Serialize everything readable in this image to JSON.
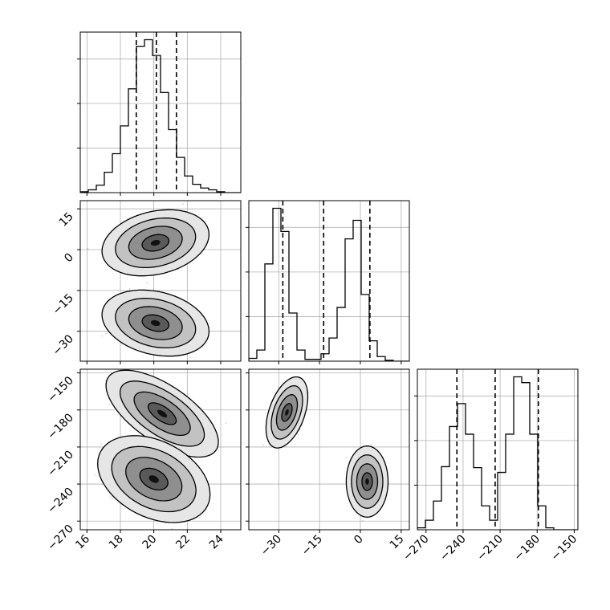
{
  "chart_data": {
    "type": "corner",
    "parameters": [
      {
        "range": [
          15.6,
          25.2
        ],
        "ticks": [
          16,
          18,
          20,
          22,
          24
        ],
        "tick_labels": [
          "16",
          "18",
          "20",
          "22",
          "24"
        ]
      },
      {
        "range": [
          -41,
          18
        ],
        "ticks": [
          -30,
          -15,
          0,
          15
        ],
        "tick_labels": [
          "−30",
          "−15",
          "0",
          "15"
        ]
      },
      {
        "range": [
          -277,
          -147
        ],
        "ticks": [
          -270,
          -240,
          -210,
          -180,
          -150
        ],
        "tick_labels": [
          "−270",
          "−240",
          "−210",
          "−180",
          "−150"
        ]
      }
    ],
    "quantiles": [
      [
        18.95,
        20.15,
        21.35
      ],
      [
        -28.5,
        -13.5,
        3.5
      ],
      [
        -245,
        -214,
        -179
      ]
    ],
    "histograms": [
      {
        "edges_start": 15.6,
        "bin_width": 0.48,
        "counts": [
          1,
          3,
          8,
          22,
          42,
          72,
          112,
          158,
          165,
          148,
          108,
          68,
          38,
          18,
          9,
          5,
          3,
          1,
          0,
          0
        ]
      },
      {
        "edges_start": -41,
        "bin_width": 2.95,
        "counts": [
          3,
          12,
          105,
          165,
          140,
          52,
          12,
          2,
          2,
          8,
          25,
          58,
          132,
          152,
          72,
          22,
          5,
          1,
          0,
          0
        ]
      },
      {
        "edges_start": -277,
        "bin_width": 6.5,
        "counts": [
          2,
          10,
          30,
          66,
          108,
          132,
          100,
          65,
          25,
          10,
          60,
          100,
          160,
          154,
          100,
          25,
          2,
          0,
          0,
          0
        ]
      }
    ],
    "clusters_2d": [
      {
        "pair": [
          0,
          1
        ],
        "blobs": [
          {
            "cx": 20.1,
            "cy": 2.5,
            "sx": 1.0,
            "sy": 3.8,
            "rho": 0.25
          },
          {
            "cx": 20.1,
            "cy": -27.0,
            "sx": 1.0,
            "sy": 3.8,
            "rho": -0.25
          }
        ]
      },
      {
        "pair": [
          0,
          2
        ],
        "blobs": [
          {
            "cx": 20.5,
            "cy": -183,
            "sx": 1.05,
            "sy": 11,
            "rho": -0.65
          },
          {
            "cx": 20.0,
            "cy": -236,
            "sx": 1.05,
            "sy": 11,
            "rho": -0.35
          }
        ]
      },
      {
        "pair": [
          1,
          2
        ],
        "blobs": [
          {
            "cx": -27.0,
            "cy": -182,
            "sx": 2.4,
            "sy": 9,
            "rho": 0.45
          },
          {
            "cx": 2.5,
            "cy": -238,
            "sx": 2.4,
            "sy": 9,
            "rho": 0.0
          }
        ]
      }
    ],
    "contour_levels_sigma": [
      0.5,
      1.0,
      1.5,
      2.0
    ],
    "grid": true,
    "xlabel": "",
    "ylabel": "",
    "title": ""
  }
}
